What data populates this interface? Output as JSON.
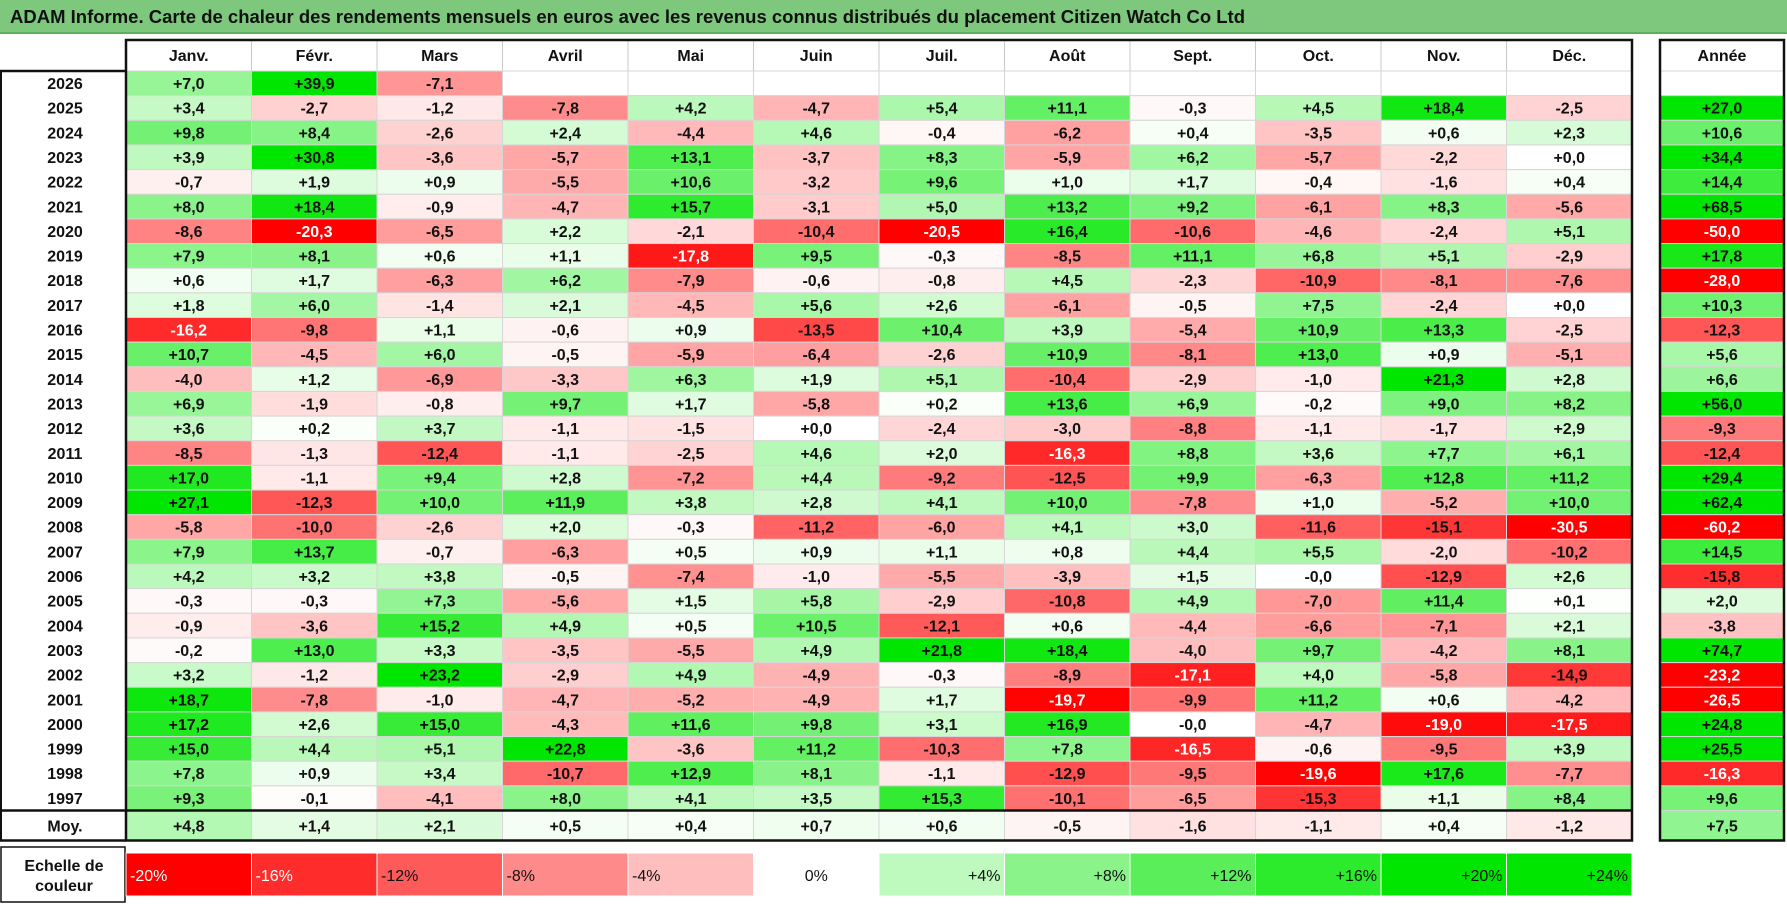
{
  "report_title": "ADAM Informe. Carte de chaleur des rendements mensuels en euros avec les revenus connus distribués du placement Citizen Watch Co Ltd",
  "colors": {
    "title_bar": "#7ec87e",
    "strong_red": "#ff0000",
    "strong_green": "#00e600",
    "neutral": "#ffffff"
  },
  "chart_data": {
    "type": "heatmap",
    "title": "ADAM Informe. Carte de chaleur des rendements mensuels en euros avec les revenus connus distribués du placement Citizen Watch Co Ltd",
    "unit": "%",
    "months": [
      "Janv.",
      "Févr.",
      "Mars",
      "Avril",
      "Mai",
      "Juin",
      "Juil.",
      "Août",
      "Sept.",
      "Oct.",
      "Nov.",
      "Déc."
    ],
    "annual_header": "Année",
    "avg_label": "Moy.",
    "years": [
      "2026",
      "2025",
      "2024",
      "2023",
      "2022",
      "2021",
      "2020",
      "2019",
      "2018",
      "2017",
      "2016",
      "2015",
      "2014",
      "2013",
      "2012",
      "2011",
      "2010",
      "2009",
      "2008",
      "2007",
      "2006",
      "2005",
      "2004",
      "2003",
      "2002",
      "2001",
      "2000",
      "1999",
      "1998",
      "1997"
    ],
    "values": [
      [
        "+7,0",
        "+39,9",
        "-7,1",
        "",
        "",
        "",
        "",
        "",
        "",
        "",
        "",
        ""
      ],
      [
        "+3,4",
        "-2,7",
        "-1,2",
        "-7,8",
        "+4,2",
        "-4,7",
        "+5,4",
        "+11,1",
        "-0,3",
        "+4,5",
        "+18,4",
        "-2,5"
      ],
      [
        "+9,8",
        "+8,4",
        "-2,6",
        "+2,4",
        "-4,4",
        "+4,6",
        "-0,4",
        "-6,2",
        "+0,4",
        "-3,5",
        "+0,6",
        "+2,3"
      ],
      [
        "+3,9",
        "+30,8",
        "-3,6",
        "-5,7",
        "+13,1",
        "-3,7",
        "+8,3",
        "-5,9",
        "+6,2",
        "-5,7",
        "-2,2",
        "+0,0"
      ],
      [
        "-0,7",
        "+1,9",
        "+0,9",
        "-5,5",
        "+10,6",
        "-3,2",
        "+9,6",
        "+1,0",
        "+1,7",
        "-0,4",
        "-1,6",
        "+0,4"
      ],
      [
        "+8,0",
        "+18,4",
        "-0,9",
        "-4,7",
        "+15,7",
        "-3,1",
        "+5,0",
        "+13,2",
        "+9,2",
        "-6,1",
        "+8,3",
        "-5,6"
      ],
      [
        "-8,6",
        "-20,3",
        "-6,5",
        "+2,2",
        "-2,1",
        "-10,4",
        "-20,5",
        "+16,4",
        "-10,6",
        "-4,6",
        "-2,4",
        "+5,1"
      ],
      [
        "+7,9",
        "+8,1",
        "+0,6",
        "+1,1",
        "-17,8",
        "+9,5",
        "-0,3",
        "-8,5",
        "+11,1",
        "+6,8",
        "+5,1",
        "-2,9"
      ],
      [
        "+0,6",
        "+1,7",
        "-6,3",
        "+6,2",
        "-7,9",
        "-0,6",
        "-0,8",
        "+4,5",
        "-2,3",
        "-10,9",
        "-8,1",
        "-7,6"
      ],
      [
        "+1,8",
        "+6,0",
        "-1,4",
        "+2,1",
        "-4,5",
        "+5,6",
        "+2,6",
        "-6,1",
        "-0,5",
        "+7,5",
        "-2,4",
        "+0,0"
      ],
      [
        "-16,2",
        "-9,8",
        "+1,1",
        "-0,6",
        "+0,9",
        "-13,5",
        "+10,4",
        "+3,9",
        "-5,4",
        "+10,9",
        "+13,3",
        "-2,5"
      ],
      [
        "+10,7",
        "-4,5",
        "+6,0",
        "-0,5",
        "-5,9",
        "-6,4",
        "-2,6",
        "+10,9",
        "-8,1",
        "+13,0",
        "+0,9",
        "-5,1"
      ],
      [
        "-4,0",
        "+1,2",
        "-6,9",
        "-3,3",
        "+6,3",
        "+1,9",
        "+5,1",
        "-10,4",
        "-2,9",
        "-1,0",
        "+21,3",
        "+2,8"
      ],
      [
        "+6,9",
        "-1,9",
        "-0,8",
        "+9,7",
        "+1,7",
        "-5,8",
        "+0,2",
        "+13,6",
        "+6,9",
        "-0,2",
        "+9,0",
        "+8,2"
      ],
      [
        "+3,6",
        "+0,2",
        "+3,7",
        "-1,1",
        "-1,5",
        "+0,0",
        "-2,4",
        "-3,0",
        "-8,8",
        "-1,1",
        "-1,7",
        "+2,9"
      ],
      [
        "-8,5",
        "-1,3",
        "-12,4",
        "-1,1",
        "-2,5",
        "+4,6",
        "+2,0",
        "-16,3",
        "+8,8",
        "+3,6",
        "+7,7",
        "+6,1"
      ],
      [
        "+17,0",
        "-1,1",
        "+9,4",
        "+2,8",
        "-7,2",
        "+4,4",
        "-9,2",
        "-12,5",
        "+9,9",
        "-6,3",
        "+12,8",
        "+11,2"
      ],
      [
        "+27,1",
        "-12,3",
        "+10,0",
        "+11,9",
        "+3,8",
        "+2,8",
        "+4,1",
        "+10,0",
        "-7,8",
        "+1,0",
        "-5,2",
        "+10,0"
      ],
      [
        "-5,8",
        "-10,0",
        "-2,6",
        "+2,0",
        "-0,3",
        "-11,2",
        "-6,0",
        "+4,1",
        "+3,0",
        "-11,6",
        "-15,1",
        "-30,5"
      ],
      [
        "+7,9",
        "+13,7",
        "-0,7",
        "-6,3",
        "+0,5",
        "+0,9",
        "+1,1",
        "+0,8",
        "+4,4",
        "+5,5",
        "-2,0",
        "-10,2"
      ],
      [
        "+4,2",
        "+3,2",
        "+3,8",
        "-0,5",
        "-7,4",
        "-1,0",
        "-5,5",
        "-3,9",
        "+1,5",
        "-0,0",
        "-12,9",
        "+2,6"
      ],
      [
        "-0,3",
        "-0,3",
        "+7,3",
        "-5,6",
        "+1,5",
        "+5,8",
        "-2,9",
        "-10,8",
        "+4,9",
        "-7,0",
        "+11,4",
        "+0,1"
      ],
      [
        "-0,9",
        "-3,6",
        "+15,2",
        "+4,9",
        "+0,5",
        "+10,5",
        "-12,1",
        "+0,6",
        "-4,4",
        "-6,6",
        "-7,1",
        "+2,1"
      ],
      [
        "-0,2",
        "+13,0",
        "+3,3",
        "-3,5",
        "-5,5",
        "+4,9",
        "+21,8",
        "+18,4",
        "-4,0",
        "+9,7",
        "-4,2",
        "+8,1"
      ],
      [
        "+3,2",
        "-1,2",
        "+23,2",
        "-2,9",
        "+4,9",
        "-4,9",
        "-0,3",
        "-8,9",
        "-17,1",
        "+4,0",
        "-5,8",
        "-14,9"
      ],
      [
        "+18,7",
        "-7,8",
        "-1,0",
        "-4,7",
        "-5,2",
        "-4,9",
        "+1,7",
        "-19,7",
        "-9,9",
        "+11,2",
        "+0,6",
        "-4,2"
      ],
      [
        "+17,2",
        "+2,6",
        "+15,0",
        "-4,3",
        "+11,6",
        "+9,8",
        "+3,1",
        "+16,9",
        "-0,0",
        "-4,7",
        "-19,0",
        "-17,5"
      ],
      [
        "+15,0",
        "+4,4",
        "+5,1",
        "+22,8",
        "-3,6",
        "+11,2",
        "-10,3",
        "+7,8",
        "-16,5",
        "-0,6",
        "-9,5",
        "+3,9"
      ],
      [
        "+7,8",
        "+0,9",
        "+3,4",
        "-10,7",
        "+12,9",
        "+8,1",
        "-1,1",
        "-12,9",
        "-9,5",
        "-19,6",
        "+17,6",
        "-7,7"
      ],
      [
        "+9,3",
        "-0,1",
        "-4,1",
        "+8,0",
        "+4,1",
        "+3,5",
        "+15,3",
        "-10,1",
        "-6,5",
        "-15,3",
        "+1,1",
        "+8,4"
      ]
    ],
    "annual": [
      "",
      "+27,0",
      "+10,6",
      "+34,4",
      "+14,4",
      "+68,5",
      "-50,0",
      "+17,8",
      "-28,0",
      "+10,3",
      "-12,3",
      "+5,6",
      "+6,6",
      "+56,0",
      "-9,3",
      "-12,4",
      "+29,4",
      "+62,4",
      "-60,2",
      "+14,5",
      "-15,8",
      "+2,0",
      "-3,8",
      "+74,7",
      "-23,2",
      "-26,5",
      "+24,8",
      "+25,5",
      "-16,3",
      "+9,6"
    ],
    "averages": [
      "+4,8",
      "+1,4",
      "+2,1",
      "+0,5",
      "+0,4",
      "+0,7",
      "+0,6",
      "-0,5",
      "-1,6",
      "-1,1",
      "+0,4",
      "-1,2"
    ],
    "average_annual": "+7,5",
    "scale": {
      "label_line1": "Echelle de",
      "label_line2": "couleur",
      "labels": [
        "-20%",
        "-16%",
        "-12%",
        "-8%",
        "-4%",
        "0%",
        "+4%",
        "+8%",
        "+12%",
        "+16%",
        "+20%",
        "+24%"
      ],
      "values": [
        -20,
        -16,
        -12,
        -8,
        -4,
        0,
        4,
        8,
        12,
        16,
        20,
        24
      ]
    }
  }
}
